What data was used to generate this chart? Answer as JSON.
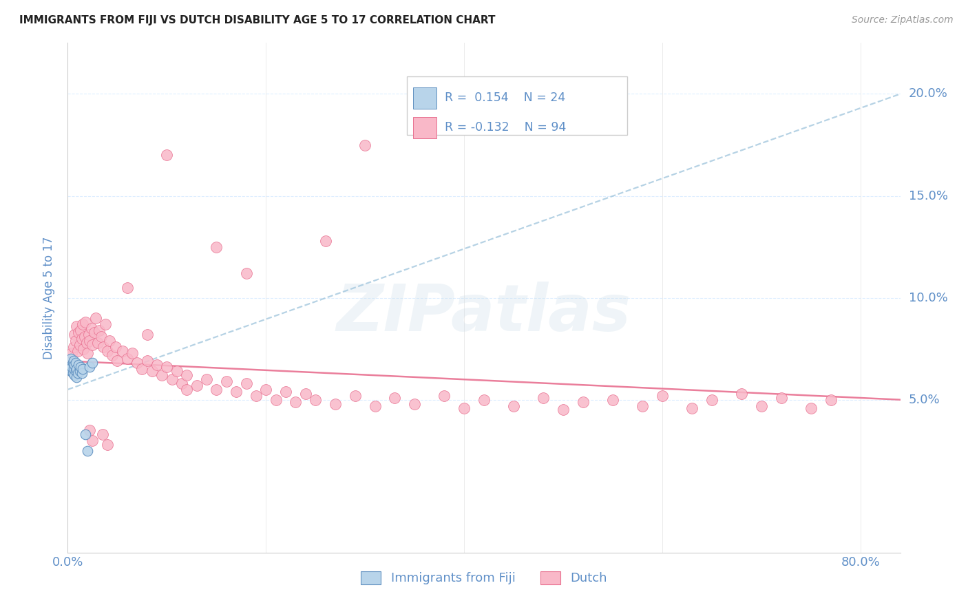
{
  "title": "IMMIGRANTS FROM FIJI VS DUTCH DISABILITY AGE 5 TO 17 CORRELATION CHART",
  "source": "Source: ZipAtlas.com",
  "ylabel_label": "Disability Age 5 to 17",
  "xlim": [
    0.0,
    0.84
  ],
  "ylim": [
    -0.025,
    0.225
  ],
  "fiji_color": "#b8d4ea",
  "dutch_color": "#f9b8c8",
  "fiji_edge_color": "#6090c0",
  "dutch_edge_color": "#e87090",
  "fiji_trend_color": "#9ec4dc",
  "dutch_trend_color": "#e87090",
  "legend_fiji_label": "Immigrants from Fiji",
  "legend_dutch_label": "Dutch",
  "R_fiji": 0.154,
  "N_fiji": 24,
  "R_dutch": -0.132,
  "N_dutch": 94,
  "watermark": "ZIPatlas",
  "axis_color": "#6090c8",
  "tick_color": "#6090c8",
  "grid_color": "#ddeeff",
  "fiji_scatter_x": [
    0.002,
    0.003,
    0.003,
    0.004,
    0.005,
    0.005,
    0.006,
    0.006,
    0.007,
    0.007,
    0.008,
    0.008,
    0.009,
    0.009,
    0.01,
    0.011,
    0.012,
    0.013,
    0.014,
    0.015,
    0.018,
    0.02,
    0.022,
    0.025
  ],
  "fiji_scatter_y": [
    0.066,
    0.064,
    0.07,
    0.066,
    0.063,
    0.068,
    0.065,
    0.069,
    0.062,
    0.067,
    0.064,
    0.068,
    0.061,
    0.065,
    0.063,
    0.067,
    0.064,
    0.066,
    0.063,
    0.065,
    0.033,
    0.025,
    0.066,
    0.068
  ],
  "dutch_scatter_x": [
    0.004,
    0.005,
    0.006,
    0.007,
    0.008,
    0.009,
    0.01,
    0.011,
    0.012,
    0.013,
    0.014,
    0.015,
    0.016,
    0.017,
    0.018,
    0.019,
    0.02,
    0.021,
    0.022,
    0.024,
    0.025,
    0.027,
    0.028,
    0.03,
    0.032,
    0.034,
    0.036,
    0.038,
    0.04,
    0.042,
    0.045,
    0.048,
    0.05,
    0.055,
    0.06,
    0.065,
    0.07,
    0.075,
    0.08,
    0.085,
    0.09,
    0.095,
    0.1,
    0.105,
    0.11,
    0.115,
    0.12,
    0.13,
    0.14,
    0.15,
    0.16,
    0.17,
    0.18,
    0.19,
    0.2,
    0.21,
    0.22,
    0.23,
    0.24,
    0.25,
    0.27,
    0.29,
    0.31,
    0.33,
    0.35,
    0.38,
    0.4,
    0.42,
    0.45,
    0.48,
    0.5,
    0.52,
    0.55,
    0.58,
    0.6,
    0.63,
    0.65,
    0.68,
    0.7,
    0.72,
    0.75,
    0.77,
    0.3,
    0.26,
    0.15,
    0.18,
    0.04,
    0.035,
    0.025,
    0.022,
    0.06,
    0.08,
    0.1,
    0.12
  ],
  "dutch_scatter_y": [
    0.073,
    0.068,
    0.076,
    0.082,
    0.079,
    0.086,
    0.074,
    0.083,
    0.077,
    0.084,
    0.08,
    0.087,
    0.075,
    0.081,
    0.088,
    0.078,
    0.073,
    0.082,
    0.079,
    0.085,
    0.077,
    0.083,
    0.09,
    0.078,
    0.084,
    0.081,
    0.076,
    0.087,
    0.074,
    0.079,
    0.072,
    0.076,
    0.069,
    0.074,
    0.07,
    0.073,
    0.068,
    0.065,
    0.069,
    0.064,
    0.067,
    0.062,
    0.066,
    0.06,
    0.064,
    0.058,
    0.062,
    0.057,
    0.06,
    0.055,
    0.059,
    0.054,
    0.058,
    0.052,
    0.055,
    0.05,
    0.054,
    0.049,
    0.053,
    0.05,
    0.048,
    0.052,
    0.047,
    0.051,
    0.048,
    0.052,
    0.046,
    0.05,
    0.047,
    0.051,
    0.045,
    0.049,
    0.05,
    0.047,
    0.052,
    0.046,
    0.05,
    0.053,
    0.047,
    0.051,
    0.046,
    0.05,
    0.175,
    0.128,
    0.125,
    0.112,
    0.028,
    0.033,
    0.03,
    0.035,
    0.105,
    0.082,
    0.17,
    0.055
  ],
  "fiji_trend_x": [
    0.0,
    0.84
  ],
  "fiji_trend_y_start": 0.055,
  "fiji_trend_y_end": 0.2,
  "dutch_trend_x": [
    0.0,
    0.84
  ],
  "dutch_trend_y_start": 0.069,
  "dutch_trend_y_end": 0.05
}
